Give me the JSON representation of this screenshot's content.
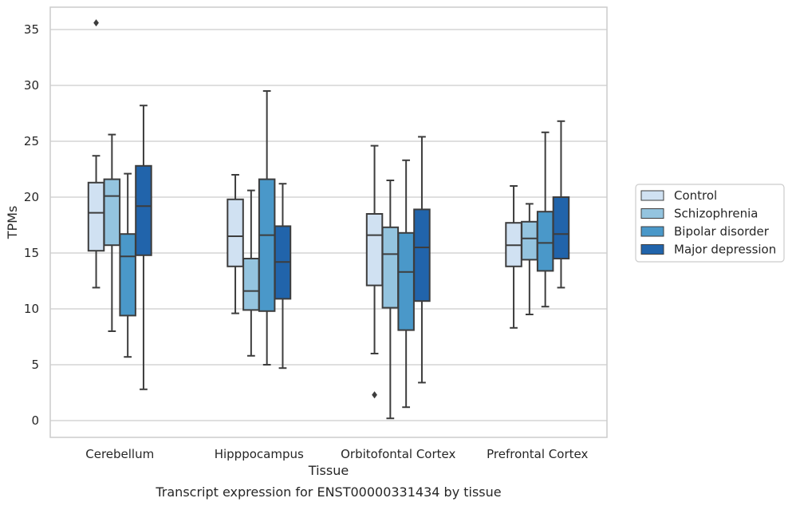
{
  "chart_data": {
    "type": "box",
    "title": "",
    "caption": "Transcript expression for ENST00000331434 by tissue",
    "xlabel": "Tissue",
    "ylabel": "TPMs",
    "ylim": [
      -1.5,
      37
    ],
    "yticks": [
      0,
      5,
      10,
      15,
      20,
      25,
      30,
      35
    ],
    "grid": "horizontal",
    "legend_position": "right",
    "categories": [
      "Cerebellum",
      "Hipppocampus",
      "Orbitofontal Cortex",
      "Prefrontal Cortex"
    ],
    "series": [
      {
        "name": "Control",
        "color": "#d0e1f2",
        "boxes": [
          {
            "min": 11.9,
            "q1": 15.2,
            "median": 18.6,
            "q3": 21.3,
            "max": 23.7,
            "outliers": [
              35.6
            ]
          },
          {
            "min": 9.6,
            "q1": 13.8,
            "median": 16.5,
            "q3": 19.8,
            "max": 22.0,
            "outliers": []
          },
          {
            "min": 6.0,
            "q1": 12.1,
            "median": 16.6,
            "q3": 18.5,
            "max": 24.6,
            "outliers": [
              2.3
            ]
          },
          {
            "min": 8.3,
            "q1": 13.8,
            "median": 15.7,
            "q3": 17.7,
            "max": 21.0,
            "outliers": []
          }
        ]
      },
      {
        "name": "Schizophrenia",
        "color": "#94c4df",
        "boxes": [
          {
            "min": 8.0,
            "q1": 15.7,
            "median": 20.1,
            "q3": 21.6,
            "max": 25.6,
            "outliers": []
          },
          {
            "min": 5.8,
            "q1": 9.9,
            "median": 11.6,
            "q3": 14.5,
            "max": 20.6,
            "outliers": []
          },
          {
            "min": 0.2,
            "q1": 10.1,
            "median": 14.9,
            "q3": 17.3,
            "max": 21.5,
            "outliers": []
          },
          {
            "min": 9.5,
            "q1": 14.4,
            "median": 16.3,
            "q3": 17.8,
            "max": 19.4,
            "outliers": []
          }
        ]
      },
      {
        "name": "Bipolar disorder",
        "color": "#4a98c9",
        "boxes": [
          {
            "min": 5.7,
            "q1": 9.4,
            "median": 14.7,
            "q3": 16.7,
            "max": 22.1,
            "outliers": []
          },
          {
            "min": 5.0,
            "q1": 9.8,
            "median": 16.6,
            "q3": 21.6,
            "max": 29.5,
            "outliers": []
          },
          {
            "min": 1.2,
            "q1": 8.1,
            "median": 13.3,
            "q3": 16.8,
            "max": 23.3,
            "outliers": []
          },
          {
            "min": 10.2,
            "q1": 13.4,
            "median": 15.9,
            "q3": 18.7,
            "max": 25.8,
            "outliers": []
          }
        ]
      },
      {
        "name": "Major depression",
        "color": "#2164ab",
        "boxes": [
          {
            "min": 2.8,
            "q1": 14.8,
            "median": 19.2,
            "q3": 22.8,
            "max": 28.2,
            "outliers": []
          },
          {
            "min": 4.7,
            "q1": 10.9,
            "median": 14.2,
            "q3": 17.4,
            "max": 21.2,
            "outliers": []
          },
          {
            "min": 3.4,
            "q1": 10.7,
            "median": 15.5,
            "q3": 18.9,
            "max": 25.4,
            "outliers": []
          },
          {
            "min": 11.9,
            "q1": 14.5,
            "median": 16.7,
            "q3": 20.0,
            "max": 26.8,
            "outliers": []
          }
        ]
      }
    ]
  }
}
